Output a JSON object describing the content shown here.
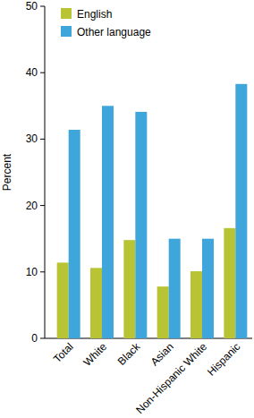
{
  "chart_data": {
    "type": "bar",
    "y_label": "Percent",
    "categories": [
      "Total",
      "White",
      "Black",
      "Asian",
      "Non-Hispanic White",
      "Hispanic"
    ],
    "series": [
      {
        "name": "English",
        "color": "#b8c433",
        "values": [
          11.4,
          10.6,
          14.8,
          7.8,
          10.1,
          16.6
        ]
      },
      {
        "name": "Other language",
        "color": "#3fa6dc",
        "values": [
          31.4,
          35.0,
          34.1,
          15.0,
          15.0,
          38.3
        ]
      }
    ],
    "ylim": [
      0,
      50
    ],
    "yticks": [
      0,
      10,
      20,
      30,
      40,
      50
    ],
    "grid": false,
    "legend": "upper left"
  }
}
